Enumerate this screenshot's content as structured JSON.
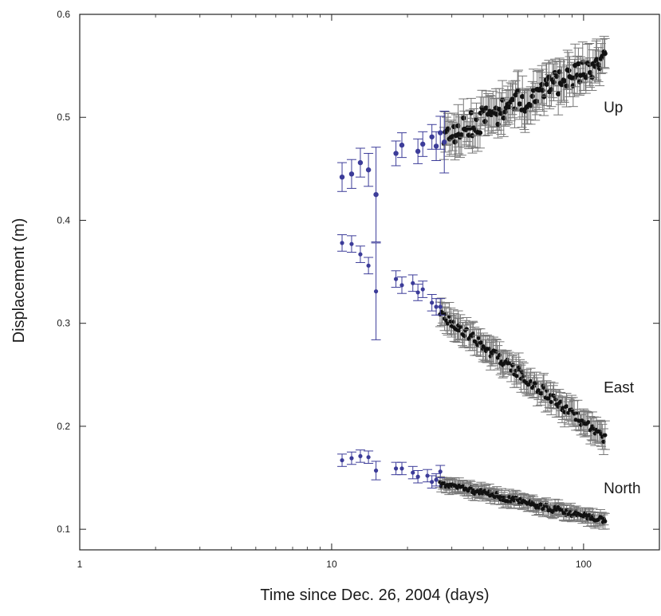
{
  "chart_data": {
    "type": "scatter",
    "title": "",
    "xlabel": "Time since Dec. 26, 2004 (days)",
    "ylabel": "Displacement (m)",
    "xscale": "log",
    "xlim": [
      1,
      200
    ],
    "ylim": [
      0.08,
      0.6
    ],
    "xticks": [
      {
        "value": 1,
        "label": "1"
      },
      {
        "value": 10,
        "label": "10"
      },
      {
        "value": 100,
        "label": "100"
      }
    ],
    "yticks": [
      {
        "value": 0.1,
        "label": "0.1"
      },
      {
        "value": 0.2,
        "label": "0.2"
      },
      {
        "value": 0.3,
        "label": "0.3"
      },
      {
        "value": 0.4,
        "label": "0.4"
      },
      {
        "value": 0.5,
        "label": "0.5"
      },
      {
        "value": 0.6,
        "label": "0.6"
      }
    ],
    "grid": false,
    "colors": {
      "early": "#3c3c99",
      "late": "#111111",
      "errorbar_late": "#777777",
      "axis": "#222222"
    },
    "series": [
      {
        "name": "Up",
        "label_anchor": {
          "x": 135,
          "y": 0.505
        },
        "early": [
          {
            "x": 11,
            "y": 0.442,
            "err": 0.014
          },
          {
            "x": 12,
            "y": 0.445,
            "err": 0.014
          },
          {
            "x": 13,
            "y": 0.456,
            "err": 0.014
          },
          {
            "x": 14,
            "y": 0.449,
            "err": 0.016
          },
          {
            "x": 15,
            "y": 0.425,
            "err": 0.046
          },
          {
            "x": 18,
            "y": 0.465,
            "err": 0.012
          },
          {
            "x": 19,
            "y": 0.473,
            "err": 0.012
          },
          {
            "x": 22,
            "y": 0.467,
            "err": 0.012
          },
          {
            "x": 23,
            "y": 0.474,
            "err": 0.012
          },
          {
            "x": 25,
            "y": 0.481,
            "err": 0.012
          },
          {
            "x": 26,
            "y": 0.472,
            "err": 0.014
          },
          {
            "x": 27,
            "y": 0.485,
            "err": 0.016
          },
          {
            "x": 28,
            "y": 0.476,
            "err": 0.03
          }
        ],
        "late": {
          "x_start": 28,
          "x_end": 122,
          "n": 120,
          "y_start": 0.48,
          "y_end": 0.555,
          "scatter": 0.012,
          "err": 0.016,
          "seed": 11
        }
      },
      {
        "name": "East",
        "label_anchor": {
          "x": 135,
          "y": 0.233
        },
        "early": [
          {
            "x": 11,
            "y": 0.378,
            "err": 0.008
          },
          {
            "x": 12,
            "y": 0.377,
            "err": 0.008
          },
          {
            "x": 13,
            "y": 0.367,
            "err": 0.008
          },
          {
            "x": 14,
            "y": 0.356,
            "err": 0.008
          },
          {
            "x": 15,
            "y": 0.331,
            "err": 0.047
          },
          {
            "x": 18,
            "y": 0.343,
            "err": 0.008
          },
          {
            "x": 19,
            "y": 0.337,
            "err": 0.008
          },
          {
            "x": 21,
            "y": 0.339,
            "err": 0.008
          },
          {
            "x": 22,
            "y": 0.33,
            "err": 0.008
          },
          {
            "x": 23,
            "y": 0.333,
            "err": 0.008
          },
          {
            "x": 25,
            "y": 0.32,
            "err": 0.008
          },
          {
            "x": 26,
            "y": 0.316,
            "err": 0.008
          },
          {
            "x": 27,
            "y": 0.316,
            "err": 0.008
          }
        ],
        "late": {
          "x_start": 27,
          "x_end": 122,
          "n": 130,
          "y_start": 0.31,
          "y_end": 0.188,
          "scatter": 0.005,
          "err": 0.011,
          "seed": 23
        }
      },
      {
        "name": "North",
        "label_anchor": {
          "x": 135,
          "y": 0.135
        },
        "early": [
          {
            "x": 11,
            "y": 0.167,
            "err": 0.006
          },
          {
            "x": 12,
            "y": 0.169,
            "err": 0.006
          },
          {
            "x": 13,
            "y": 0.171,
            "err": 0.006
          },
          {
            "x": 14,
            "y": 0.17,
            "err": 0.006
          },
          {
            "x": 15,
            "y": 0.157,
            "err": 0.009
          },
          {
            "x": 18,
            "y": 0.159,
            "err": 0.006
          },
          {
            "x": 19,
            "y": 0.159,
            "err": 0.006
          },
          {
            "x": 21,
            "y": 0.155,
            "err": 0.006
          },
          {
            "x": 22,
            "y": 0.151,
            "err": 0.006
          },
          {
            "x": 24,
            "y": 0.152,
            "err": 0.006
          },
          {
            "x": 25,
            "y": 0.146,
            "err": 0.006
          },
          {
            "x": 26,
            "y": 0.148,
            "err": 0.006
          },
          {
            "x": 27,
            "y": 0.156,
            "err": 0.006
          }
        ],
        "late": {
          "x_start": 27,
          "x_end": 122,
          "n": 130,
          "y_start": 0.145,
          "y_end": 0.108,
          "scatter": 0.003,
          "err": 0.006,
          "seed": 37
        }
      }
    ]
  }
}
